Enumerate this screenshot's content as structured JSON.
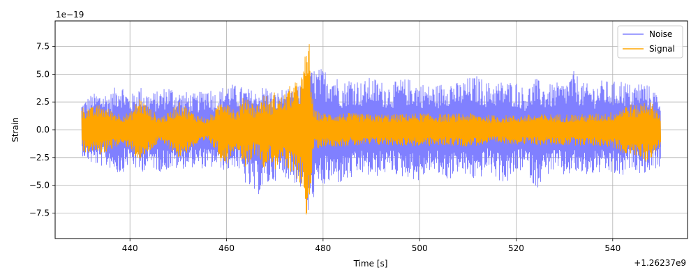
{
  "chart_data": {
    "type": "line",
    "title": "",
    "xlabel": "Time [s]",
    "ylabel": "Strain",
    "x_offset_label": "+1.26237e9",
    "y_scale_label": "1e−19",
    "xlim": [
      424.5,
      555.5
    ],
    "ylim": [
      -9.8,
      9.8
    ],
    "x_ticks": [
      440,
      460,
      480,
      500,
      520,
      540
    ],
    "x_tick_labels": [
      "440",
      "460",
      "480",
      "500",
      "520",
      "540"
    ],
    "y_ticks": [
      -7.5,
      -5.0,
      -2.5,
      0.0,
      2.5,
      5.0,
      7.5
    ],
    "y_tick_labels": [
      "−7.5",
      "−5.0",
      "−2.5",
      "0.0",
      "2.5",
      "5.0",
      "7.5"
    ],
    "grid": true,
    "legend_position": "top-right",
    "series": [
      {
        "name": "Noise",
        "color": "#8080ff",
        "x": [
          430,
          432,
          434,
          436,
          438,
          440,
          442,
          444,
          446,
          448,
          450,
          452,
          454,
          456,
          458,
          460,
          462,
          464,
          466,
          468,
          470,
          472,
          474,
          476,
          477,
          478,
          480,
          482,
          484,
          486,
          488,
          490,
          492,
          494,
          496,
          498,
          500,
          502,
          504,
          506,
          508,
          510,
          512,
          514,
          516,
          518,
          520,
          522,
          524,
          526,
          528,
          530,
          532,
          534,
          536,
          538,
          540,
          542,
          544,
          546,
          548,
          550
        ],
        "upper": [
          2.5,
          3.2,
          3.4,
          3.3,
          4.5,
          3.0,
          4.0,
          3.3,
          3.5,
          4.1,
          3.5,
          3.4,
          3.2,
          4.1,
          3.3,
          4.3,
          4.0,
          3.8,
          3.5,
          4.1,
          3.3,
          3.8,
          3.4,
          4.6,
          5.0,
          5.6,
          5.5,
          5.4,
          4.2,
          5.0,
          4.3,
          4.8,
          4.4,
          4.1,
          4.6,
          4.6,
          4.3,
          4.0,
          4.1,
          4.7,
          4.2,
          4.7,
          4.9,
          4.3,
          4.4,
          4.4,
          4.4,
          3.6,
          4.7,
          4.0,
          4.2,
          4.3,
          5.3,
          4.2,
          4.1,
          4.5,
          4.3,
          4.6,
          4.0,
          4.5,
          3.8,
          3.2
        ],
        "lower": [
          -2.3,
          -3.1,
          -3.3,
          -3.5,
          -4.1,
          -3.0,
          -4.0,
          -3.3,
          -3.8,
          -3.6,
          -3.6,
          -3.4,
          -3.4,
          -3.6,
          -3.3,
          -3.8,
          -3.3,
          -5.0,
          -6.1,
          -5.3,
          -4.6,
          -4.2,
          -4.8,
          -5.6,
          -8.5,
          -6.2,
          -5.2,
          -4.8,
          -4.9,
          -4.5,
          -4.0,
          -4.4,
          -4.1,
          -3.8,
          -4.3,
          -4.3,
          -4.8,
          -3.7,
          -4.2,
          -4.6,
          -3.8,
          -4.4,
          -4.7,
          -3.6,
          -4.5,
          -4.9,
          -4.0,
          -3.4,
          -5.5,
          -4.2,
          -3.7,
          -4.3,
          -3.9,
          -4.2,
          -4.1,
          -3.9,
          -4.1,
          -4.4,
          -3.4,
          -4.0,
          -3.7,
          -3.3
        ]
      },
      {
        "name": "Signal",
        "color": "#ffa500",
        "x": [
          430,
          431,
          432,
          434,
          436,
          438,
          440,
          441,
          442,
          443,
          444,
          446,
          448,
          449,
          450,
          451,
          452,
          453,
          454,
          456,
          458,
          459,
          460,
          461,
          462,
          463,
          464,
          465,
          466,
          467,
          468,
          469,
          470,
          471,
          472,
          473,
          474,
          475,
          476,
          476.5,
          477,
          478,
          480,
          485,
          490,
          495,
          500,
          505,
          510,
          515,
          520,
          525,
          530,
          535,
          540,
          543,
          545,
          546,
          547,
          548,
          549,
          550
        ],
        "upper": [
          2.0,
          2.2,
          2.0,
          2.3,
          1.8,
          1.5,
          1.5,
          2.3,
          3.0,
          2.5,
          2.0,
          1.2,
          1.5,
          2.0,
          2.5,
          2.4,
          2.0,
          1.6,
          1.4,
          1.0,
          2.0,
          2.9,
          3.2,
          2.3,
          1.6,
          2.5,
          3.4,
          2.7,
          2.1,
          2.8,
          3.3,
          2.6,
          3.5,
          2.9,
          3.3,
          3.9,
          4.3,
          4.3,
          5.6,
          7.7,
          9.0,
          1.8,
          1.5,
          1.5,
          1.4,
          1.4,
          1.5,
          1.4,
          1.5,
          1.3,
          1.3,
          1.4,
          1.4,
          1.4,
          1.6,
          2.4,
          2.2,
          2.5,
          2.9,
          2.5,
          2.0,
          1.5
        ],
        "lower": [
          -2.0,
          -2.2,
          -2.0,
          -2.3,
          -1.8,
          -1.5,
          -1.6,
          -2.4,
          -3.0,
          -2.5,
          -2.0,
          -1.2,
          -1.6,
          -2.0,
          -2.6,
          -2.4,
          -2.0,
          -1.6,
          -1.5,
          -1.0,
          -2.0,
          -3.0,
          -3.3,
          -2.3,
          -1.6,
          -2.6,
          -3.4,
          -2.7,
          -2.1,
          -2.8,
          -3.7,
          -2.6,
          -3.7,
          -2.9,
          -3.4,
          -4.1,
          -4.5,
          -4.5,
          -6.0,
          -7.8,
          -9.0,
          -1.8,
          -1.5,
          -1.5,
          -1.4,
          -1.4,
          -1.5,
          -1.4,
          -1.5,
          -1.3,
          -1.3,
          -1.4,
          -1.4,
          -1.4,
          -1.6,
          -2.3,
          -2.4,
          -2.6,
          -3.0,
          -2.5,
          -2.0,
          -1.5
        ]
      }
    ]
  }
}
